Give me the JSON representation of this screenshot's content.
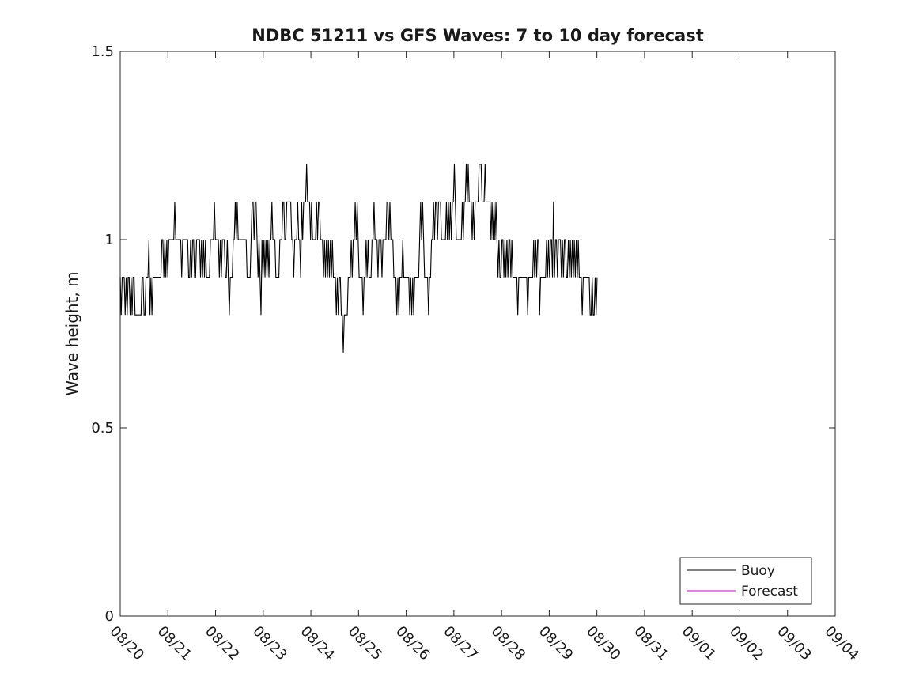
{
  "chart_data": {
    "type": "line",
    "title": "NDBC 51211 vs GFS Waves: 7 to 10 day forecast",
    "xlabel": "",
    "ylabel": "Wave height, m",
    "ylim": [
      0,
      1.5
    ],
    "yticks": [
      0,
      0.5,
      1,
      1.5
    ],
    "ytick_labels": [
      "0",
      "0.5",
      "1",
      "1.5"
    ],
    "xlim": [
      0,
      15
    ],
    "xticks": [
      0,
      1,
      2,
      3,
      4,
      5,
      6,
      7,
      8,
      9,
      10,
      11,
      12,
      13,
      14,
      15
    ],
    "xtick_labels": [
      "08/20",
      "08/21",
      "08/22",
      "08/23",
      "08/24",
      "08/25",
      "08/26",
      "08/27",
      "08/28",
      "08/29",
      "08/30",
      "08/31",
      "09/01",
      "09/02",
      "09/03",
      "09/04"
    ],
    "grid": false,
    "legend_position": "bottom-right",
    "series": [
      {
        "name": "Buoy",
        "color": "#000000",
        "x_start": 0.0,
        "x_step": 0.0208,
        "values": [
          0.9,
          0.8,
          0.9,
          0.9,
          0.9,
          0.8,
          0.9,
          0.8,
          0.9,
          0.9,
          0.8,
          0.9,
          0.8,
          0.9,
          0.9,
          0.8,
          0.8,
          0.8,
          0.8,
          0.8,
          0.8,
          0.8,
          0.9,
          0.9,
          0.8,
          0.8,
          0.9,
          0.9,
          0.9,
          1.0,
          0.8,
          0.9,
          0.8,
          0.9,
          0.9,
          0.9,
          0.9,
          0.9,
          0.9,
          0.9,
          0.9,
          0.9,
          1.0,
          1.0,
          0.9,
          1.0,
          0.9,
          1.0,
          0.9,
          1.0,
          1.0,
          1.0,
          1.0,
          1.0,
          1.0,
          1.1,
          1.0,
          1.0,
          1.0,
          1.0,
          1.0,
          1.0,
          0.9,
          1.0,
          1.0,
          1.0,
          1.0,
          1.0,
          1.0,
          0.9,
          0.9,
          1.0,
          0.9,
          1.0,
          1.0,
          0.9,
          0.9,
          1.0,
          1.0,
          1.0,
          1.0,
          0.9,
          1.0,
          0.9,
          1.0,
          0.9,
          1.0,
          0.9,
          0.9,
          0.9,
          0.9,
          1.0,
          1.0,
          1.0,
          1.0,
          1.1,
          1.0,
          1.0,
          1.0,
          1.0,
          0.9,
          1.0,
          0.9,
          1.0,
          1.0,
          1.0,
          0.9,
          0.9,
          1.0,
          0.9,
          0.8,
          0.9,
          0.9,
          0.9,
          1.0,
          1.0,
          1.1,
          1.0,
          1.1,
          1.0,
          1.0,
          1.0,
          1.0,
          1.0,
          1.0,
          1.0,
          1.0,
          1.0,
          0.9,
          0.9,
          0.9,
          0.9,
          1.0,
          1.1,
          1.1,
          1.0,
          1.1,
          1.1,
          1.0,
          0.9,
          1.0,
          0.9,
          0.8,
          1.0,
          0.9,
          1.0,
          0.9,
          1.0,
          0.9,
          1.0,
          0.9,
          1.0,
          1.0,
          1.1,
          1.0,
          1.0,
          1.0,
          0.9,
          0.9,
          0.9,
          0.9,
          1.0,
          1.0,
          1.0,
          1.1,
          1.1,
          1.0,
          1.0,
          1.1,
          1.1,
          1.1,
          1.1,
          1.1,
          1.0,
          1.0,
          0.9,
          1.0,
          1.0,
          1.0,
          1.1,
          1.0,
          1.0,
          0.9,
          1.1,
          1.0,
          1.1,
          1.1,
          1.1,
          1.2,
          1.1,
          1.1,
          1.1,
          1.0,
          1.1,
          1.0,
          1.0,
          1.0,
          1.0,
          1.1,
          1.0,
          1.1,
          1.1,
          1.0,
          1.0,
          1.0,
          0.9,
          1.0,
          0.9,
          1.0,
          0.9,
          1.0,
          0.9,
          1.0,
          0.9,
          1.0,
          0.9,
          0.9,
          0.9,
          0.8,
          0.9,
          0.8,
          0.9,
          0.9,
          0.8,
          0.8,
          0.7,
          0.8,
          0.8,
          0.8,
          0.8,
          0.9,
          0.9,
          0.9,
          1.0,
          0.9,
          1.0,
          1.0,
          1.1,
          1.0,
          1.1,
          1.0,
          0.9,
          0.9,
          0.9,
          0.9,
          0.8,
          0.9,
          0.9,
          1.0,
          0.9,
          1.0,
          0.9,
          0.9,
          0.9,
          1.0,
          1.0,
          1.1,
          1.0,
          1.0,
          1.0,
          0.9,
          1.0,
          1.0,
          1.0,
          0.9,
          1.0,
          1.0,
          1.0,
          1.0,
          1.1,
          1.1,
          1.0,
          1.1,
          1.0,
          1.0,
          1.0,
          0.9,
          0.9,
          0.9,
          0.8,
          0.9,
          0.8,
          0.9,
          0.9,
          0.9,
          1.0,
          0.9,
          0.9,
          0.9,
          0.9,
          0.9,
          0.9,
          0.8,
          0.9,
          0.8,
          0.9,
          0.8,
          0.9,
          0.9,
          0.9,
          0.9,
          0.9,
          1.0,
          1.1,
          1.0,
          1.1,
          1.0,
          0.9,
          0.9,
          0.9,
          0.9,
          0.8,
          0.9,
          0.9,
          1.0,
          1.0,
          1.1,
          1.0,
          1.1,
          1.1,
          1.0,
          1.1,
          1.1,
          1.1,
          1.0,
          1.0,
          1.0,
          1.0,
          1.0,
          1.1,
          1.0,
          1.1,
          1.0,
          1.1,
          1.0,
          1.1,
          1.1,
          1.2,
          1.1,
          1.0,
          1.0,
          1.0,
          1.0,
          1.0,
          1.0,
          1.1,
          1.0,
          1.1,
          1.1,
          1.2,
          1.1,
          1.2,
          1.1,
          1.1,
          1.1,
          1.0,
          1.1,
          1.0,
          1.1,
          1.1,
          1.1,
          1.1,
          1.2,
          1.2,
          1.2,
          1.1,
          1.1,
          1.1,
          1.2,
          1.1,
          1.1,
          1.1,
          1.1,
          1.1,
          1.0,
          1.1,
          1.0,
          1.1,
          1.0,
          1.1,
          1.0,
          0.9,
          1.0,
          0.9,
          0.9,
          1.0,
          1.0,
          0.9,
          1.0,
          0.9,
          1.0,
          0.9,
          1.0,
          1.0,
          0.9,
          1.0,
          0.9,
          0.9,
          0.9,
          0.9,
          0.9,
          0.8,
          0.9,
          0.9,
          0.9,
          0.9,
          0.9,
          0.9,
          0.9,
          0.9,
          0.9,
          0.8,
          0.9,
          0.9,
          0.9,
          0.9,
          0.9,
          1.0,
          0.9,
          1.0,
          0.9,
          1.0,
          1.0,
          0.8,
          0.9,
          0.9,
          0.9,
          0.9,
          0.9,
          0.9,
          1.0,
          0.9,
          1.0,
          0.9,
          1.0,
          1.0,
          0.9,
          1.1,
          0.9,
          1.0,
          1.0,
          0.9,
          1.0,
          1.0,
          1.0,
          0.9,
          1.0,
          0.9,
          1.0,
          1.0,
          0.9,
          0.9,
          1.0,
          0.9,
          1.0,
          0.9,
          1.0,
          0.9,
          1.0,
          0.9,
          1.0,
          0.9,
          1.0,
          0.9,
          0.9,
          0.9,
          0.8,
          0.9,
          0.9,
          0.9,
          0.9,
          0.9,
          0.9,
          0.9,
          0.8,
          0.8,
          0.9,
          0.8,
          0.8,
          0.9,
          0.8,
          0.9
        ]
      },
      {
        "name": "Forecast",
        "color": "#cc00cc",
        "x_start": 0.0,
        "x_step": 0.25,
        "values": []
      }
    ]
  }
}
